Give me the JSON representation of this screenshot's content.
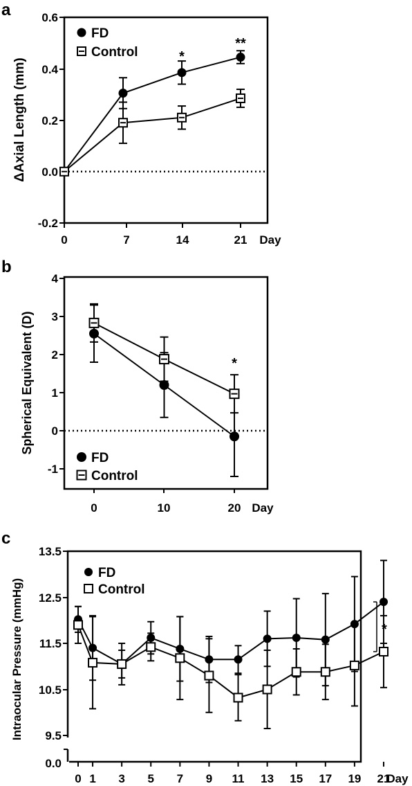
{
  "chart_data": [
    {
      "panel": "a",
      "type": "line",
      "ylabel": "ΔAxial Length (mm)",
      "xlabel": "Day",
      "x_ticks": [
        "0",
        "7",
        "14",
        "21"
      ],
      "y_ticks": [
        "0.6",
        "0.4",
        "0.2",
        "0.0",
        "-0.2"
      ],
      "xlim": [
        0,
        22
      ],
      "ylim": [
        -0.2,
        0.6
      ],
      "reference_line": {
        "y": 0,
        "style": "dotted"
      },
      "legend_position": "top-left",
      "series": [
        {
          "name": "FD",
          "marker": "filled-circle",
          "x": [
            0,
            7,
            14,
            21
          ],
          "y": [
            0.0,
            0.305,
            0.385,
            0.445
          ],
          "err": [
            0,
            0.06,
            0.045,
            0.025
          ]
        },
        {
          "name": "Control",
          "marker": "open-square",
          "x": [
            0,
            7,
            14,
            21
          ],
          "y": [
            0.0,
            0.19,
            0.21,
            0.285
          ],
          "err": [
            0,
            0.08,
            0.045,
            0.035
          ]
        }
      ],
      "annotations": [
        {
          "x": 14,
          "y": 0.44,
          "text": "*"
        },
        {
          "x": 21,
          "y": 0.49,
          "text": "**"
        }
      ]
    },
    {
      "panel": "b",
      "type": "line",
      "ylabel": "Spherical Equivalent (D)",
      "xlabel": "Day",
      "x_ticks": [
        "0",
        "10",
        "20"
      ],
      "y_ticks": [
        "4",
        "3",
        "2",
        "1",
        "0",
        "-1"
      ],
      "xlim": [
        -4,
        24
      ],
      "ylim": [
        -1.5,
        4
      ],
      "reference_line": {
        "y": 0,
        "style": "dotted"
      },
      "legend_position": "bottom-left",
      "series": [
        {
          "name": "FD",
          "marker": "filled-circle",
          "x": [
            0,
            10,
            20
          ],
          "y": [
            2.55,
            1.2,
            -0.15
          ],
          "err": [
            0.75,
            0.85,
            1.05
          ]
        },
        {
          "name": "Control",
          "marker": "open-square",
          "x": [
            0,
            10,
            20
          ],
          "y": [
            2.83,
            1.88,
            0.97
          ],
          "err": [
            0.5,
            0.58,
            0.5
          ]
        }
      ],
      "annotations": [
        {
          "x": 20,
          "y": 1.9,
          "text": "*"
        }
      ]
    },
    {
      "panel": "c",
      "type": "line",
      "ylabel": "Intraocular Pressure (mmHg)",
      "xlabel": "Day",
      "x_ticks": [
        "0",
        "1",
        "3",
        "5",
        "7",
        "9",
        "11",
        "13",
        "15",
        "17",
        "19",
        "21"
      ],
      "y_ticks": [
        "13.5",
        "12.5",
        "11.5",
        "10.5",
        "9.5",
        "0.0"
      ],
      "xlim": [
        -0.5,
        22
      ],
      "ylim": [
        9.5,
        13.5
      ],
      "axis_break": true,
      "legend_position": "top-left",
      "series": [
        {
          "name": "FD",
          "marker": "filled-circle",
          "x": [
            0,
            1,
            3,
            5,
            7,
            9,
            11,
            13,
            15,
            17,
            19,
            21
          ],
          "y": [
            12.02,
            11.4,
            11.05,
            11.62,
            11.38,
            11.15,
            11.15,
            11.6,
            11.62,
            11.58,
            11.92,
            12.4
          ],
          "err": [
            0.28,
            0.7,
            0.45,
            0.35,
            0.7,
            0.5,
            0.3,
            0.6,
            0.85,
            1.0,
            1.03,
            0.9
          ]
        },
        {
          "name": "Control",
          "marker": "open-square",
          "x": [
            0,
            1,
            3,
            5,
            7,
            9,
            11,
            13,
            15,
            17,
            19,
            21
          ],
          "y": [
            11.9,
            11.08,
            11.05,
            11.42,
            11.18,
            10.8,
            10.32,
            10.5,
            10.88,
            10.88,
            11.02,
            11.32
          ],
          "err": [
            0.4,
            1.0,
            0.3,
            0.3,
            0.9,
            0.8,
            0.5,
            0.85,
            0.5,
            0.6,
            0.88,
            0.78
          ]
        }
      ],
      "annotations": [
        {
          "bracket_x": 21.9,
          "y_from": 11.32,
          "y_to": 12.4,
          "text": "*"
        }
      ]
    }
  ]
}
